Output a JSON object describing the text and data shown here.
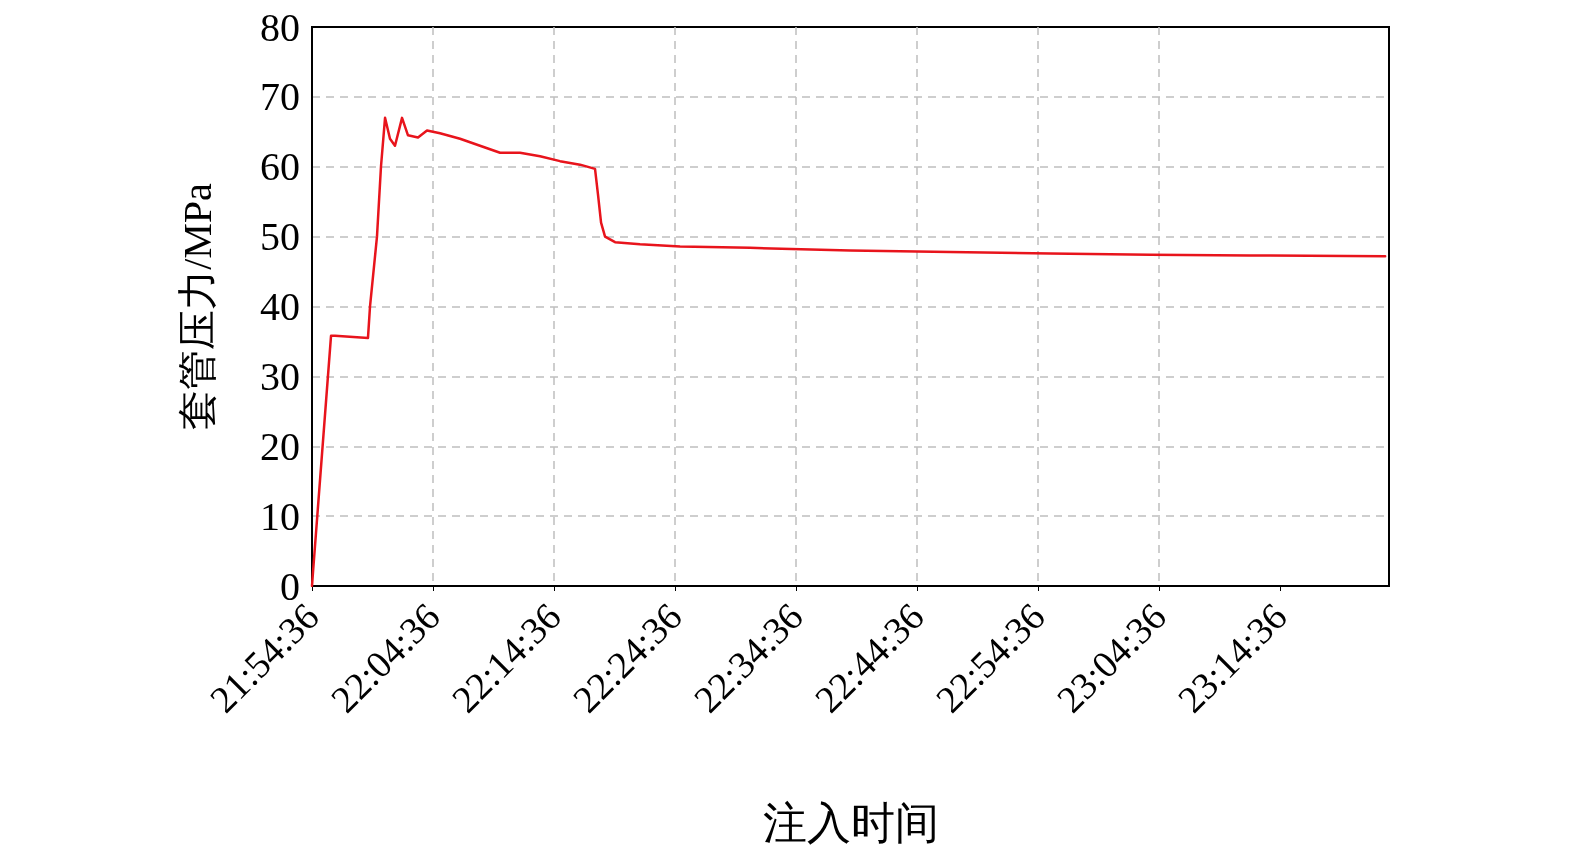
{
  "chart_data": {
    "type": "line",
    "xlabel": "注入时间",
    "ylabel": "套管压力/MPa",
    "x": [
      21.91,
      21.9114,
      21.9362,
      21.9417,
      21.9871,
      21.9899,
      21.9995,
      22.005,
      22.0106,
      22.0174,
      22.0243,
      22.034,
      22.0422,
      22.056,
      22.0684,
      22.0863,
      22.1139,
      22.1414,
      22.169,
      22.1965,
      22.2241,
      22.2516,
      22.2792,
      22.2998,
      22.3039,
      22.3081,
      22.3136,
      22.3274,
      22.3618,
      22.4169,
      22.5133,
      22.6511,
      22.7888,
      22.9265,
      23.0643,
      23.202,
      23.388
    ],
    "series": [
      {
        "color": "#e8141c",
        "values": [
          0,
          2,
          35.8,
          35.8,
          35.5,
          40,
          50,
          60,
          67,
          64,
          63,
          67,
          64.5,
          64.2,
          65.2,
          64.8,
          64,
          63,
          62,
          62,
          61.5,
          60.8,
          60.3,
          59.7,
          56,
          52,
          50,
          49.2,
          48.9,
          48.6,
          48.4,
          48,
          47.8,
          47.6,
          47.4,
          47.3,
          47.2
        ]
      }
    ],
    "xlim": [
      21.91,
      23.3933
    ],
    "xticks": [
      {
        "value": 21.91,
        "label": "21:54:36"
      },
      {
        "value": 22.0767,
        "label": "22:04:36"
      },
      {
        "value": 22.2433,
        "label": "22:14:36"
      },
      {
        "value": 22.41,
        "label": "22:24:36"
      },
      {
        "value": 22.5767,
        "label": "22:34:36"
      },
      {
        "value": 22.7433,
        "label": "22:44:36"
      },
      {
        "value": 22.91,
        "label": "22:54:36"
      },
      {
        "value": 23.0767,
        "label": "23:04:36"
      },
      {
        "value": 23.2433,
        "label": "23:14:36"
      }
    ],
    "ylim": [
      0,
      80
    ],
    "yticks": [
      0,
      10,
      20,
      30,
      40,
      50,
      60,
      70,
      80
    ],
    "grid": true,
    "line_style": "solid",
    "marker": "none"
  }
}
